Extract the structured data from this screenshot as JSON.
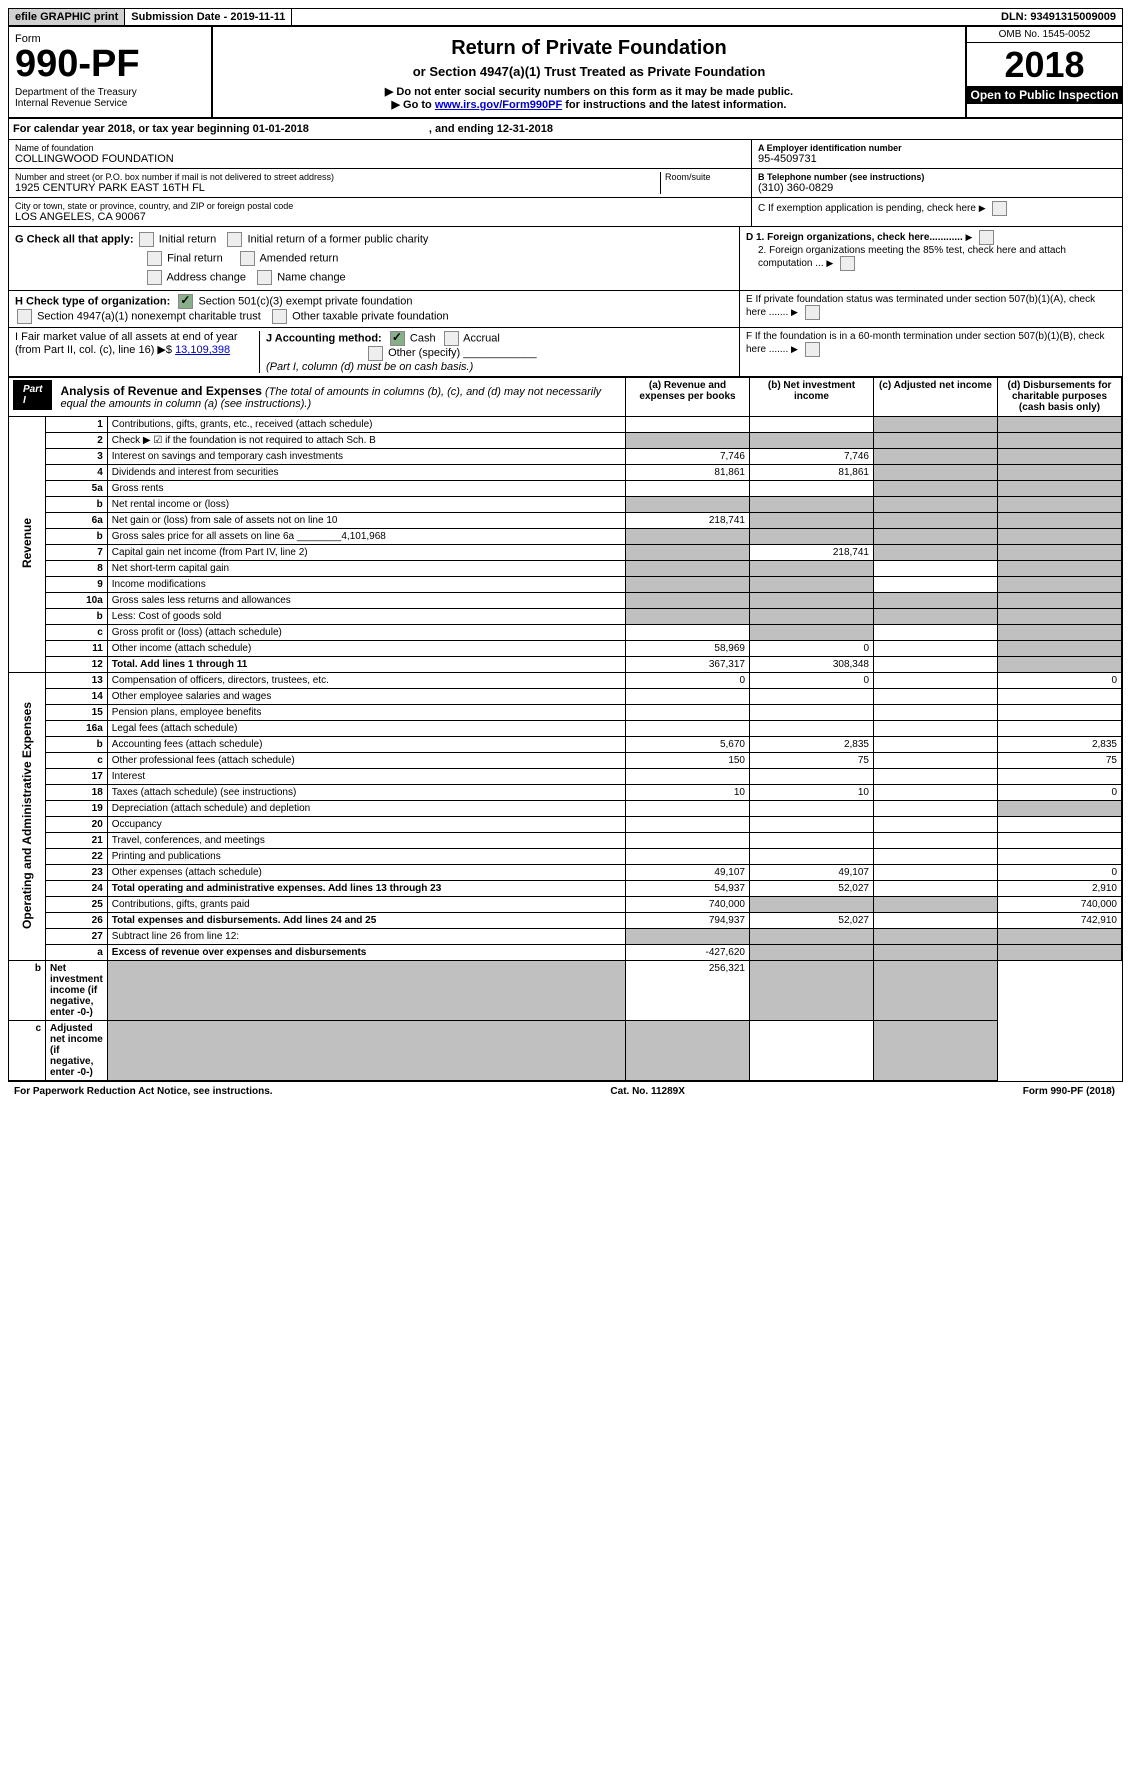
{
  "topbar": {
    "efile": "efile GRAPHIC print",
    "subdate_lbl": "Submission Date - ",
    "subdate": "2019-11-11",
    "dln_lbl": "DLN: ",
    "dln": "93491315009009"
  },
  "header": {
    "form_lbl": "Form",
    "form_num": "990-PF",
    "dept": "Department of the Treasury",
    "irs": "Internal Revenue Service",
    "title": "Return of Private Foundation",
    "subtitle": "or Section 4947(a)(1) Trust Treated as Private Foundation",
    "warn": "▶ Do not enter social security numbers on this form as it may be made public.",
    "goto": "▶ Go to ",
    "link": "www.irs.gov/Form990PF",
    "goto2": " for instructions and the latest information.",
    "omb": "OMB No. 1545-0052",
    "year": "2018",
    "inspect": "Open to Public Inspection"
  },
  "cal": {
    "text": "For calendar year 2018, or tax year beginning 01-01-2018",
    "end": ", and ending 12-31-2018"
  },
  "id": {
    "name_lbl": "Name of foundation",
    "name": "COLLINGWOOD FOUNDATION",
    "addr_lbl": "Number and street (or P.O. box number if mail is not delivered to street address)",
    "room_lbl": "Room/suite",
    "addr": "1925 CENTURY PARK EAST 16TH FL",
    "city_lbl": "City or town, state or province, country, and ZIP or foreign postal code",
    "city": "LOS ANGELES, CA  90067",
    "a_lbl": "A Employer identification number",
    "a": "95-4509731",
    "b_lbl": "B Telephone number (see instructions)",
    "b": "(310) 360-0829",
    "c_lbl": "C If exemption application is pending, check here",
    "d1": "D 1. Foreign organizations, check here............",
    "d2": "2. Foreign organizations meeting the 85% test, check here and attach computation ...",
    "e": "E If private foundation status was terminated under section 507(b)(1)(A), check here .......",
    "f": "F If the foundation is in a 60-month termination under section 507(b)(1)(B), check here ......."
  },
  "g": {
    "lbl": "G Check all that apply:",
    "i1": "Initial return",
    "i2": "Initial return of a former public charity",
    "i3": "Final return",
    "i4": "Amended return",
    "i5": "Address change",
    "i6": "Name change"
  },
  "h": {
    "lbl": "H Check type of organization:",
    "o1": "Section 501(c)(3) exempt private foundation",
    "o2": "Section 4947(a)(1) nonexempt charitable trust",
    "o3": "Other taxable private foundation"
  },
  "i": {
    "lbl": "I Fair market value of all assets at end of year (from Part II, col. (c), line 16) ▶$ ",
    "val": "13,109,398"
  },
  "j": {
    "lbl": "J Accounting method:",
    "c": "Cash",
    "a": "Accrual",
    "o": "Other (specify)",
    "note": "(Part I, column (d) must be on cash basis.)"
  },
  "part1": {
    "tag": "Part I",
    "title": "Analysis of Revenue and Expenses",
    "note": "(The total of amounts in columns (b), (c), and (d) may not necessarily equal the amounts in column (a) (see instructions).)"
  },
  "cols": {
    "a": "(a) Revenue and expenses per books",
    "b": "(b) Net investment income",
    "c": "(c) Adjusted net income",
    "d": "(d) Disbursements for charitable purposes (cash basis only)"
  },
  "side": {
    "rev": "Revenue",
    "exp": "Operating and Administrative Expenses"
  },
  "rows": [
    {
      "n": "1",
      "d": "Contributions, gifts, grants, etc., received (attach schedule)"
    },
    {
      "n": "2",
      "d": "Check ▶ ☑ if the foundation is not required to attach Sch. B"
    },
    {
      "n": "3",
      "d": "Interest on savings and temporary cash investments",
      "a": "7,746",
      "b": "7,746"
    },
    {
      "n": "4",
      "d": "Dividends and interest from securities",
      "a": "81,861",
      "b": "81,861"
    },
    {
      "n": "5a",
      "d": "Gross rents"
    },
    {
      "n": "b",
      "d": "Net rental income or (loss)"
    },
    {
      "n": "6a",
      "d": "Net gain or (loss) from sale of assets not on line 10",
      "a": "218,741"
    },
    {
      "n": "b",
      "d": "Gross sales price for all assets on line 6a ________4,101,968"
    },
    {
      "n": "7",
      "d": "Capital gain net income (from Part IV, line 2)",
      "b": "218,741"
    },
    {
      "n": "8",
      "d": "Net short-term capital gain"
    },
    {
      "n": "9",
      "d": "Income modifications"
    },
    {
      "n": "10a",
      "d": "Gross sales less returns and allowances"
    },
    {
      "n": "b",
      "d": "Less: Cost of goods sold"
    },
    {
      "n": "c",
      "d": "Gross profit or (loss) (attach schedule)"
    },
    {
      "n": "11",
      "d": "Other income (attach schedule)",
      "a": "58,969",
      "b": "0"
    },
    {
      "n": "12",
      "d": "Total. Add lines 1 through 11",
      "a": "367,317",
      "b": "308,348",
      "bold": true
    },
    {
      "n": "13",
      "d": "Compensation of officers, directors, trustees, etc.",
      "a": "0",
      "b": "0",
      "dd": "0"
    },
    {
      "n": "14",
      "d": "Other employee salaries and wages"
    },
    {
      "n": "15",
      "d": "Pension plans, employee benefits"
    },
    {
      "n": "16a",
      "d": "Legal fees (attach schedule)"
    },
    {
      "n": "b",
      "d": "Accounting fees (attach schedule)",
      "a": "5,670",
      "b": "2,835",
      "dd": "2,835"
    },
    {
      "n": "c",
      "d": "Other professional fees (attach schedule)",
      "a": "150",
      "b": "75",
      "dd": "75"
    },
    {
      "n": "17",
      "d": "Interest"
    },
    {
      "n": "18",
      "d": "Taxes (attach schedule) (see instructions)",
      "a": "10",
      "b": "10",
      "dd": "0"
    },
    {
      "n": "19",
      "d": "Depreciation (attach schedule) and depletion"
    },
    {
      "n": "20",
      "d": "Occupancy"
    },
    {
      "n": "21",
      "d": "Travel, conferences, and meetings"
    },
    {
      "n": "22",
      "d": "Printing and publications"
    },
    {
      "n": "23",
      "d": "Other expenses (attach schedule)",
      "a": "49,107",
      "b": "49,107",
      "dd": "0"
    },
    {
      "n": "24",
      "d": "Total operating and administrative expenses. Add lines 13 through 23",
      "a": "54,937",
      "b": "52,027",
      "dd": "2,910",
      "bold": true
    },
    {
      "n": "25",
      "d": "Contributions, gifts, grants paid",
      "a": "740,000",
      "dd": "740,000"
    },
    {
      "n": "26",
      "d": "Total expenses and disbursements. Add lines 24 and 25",
      "a": "794,937",
      "b": "52,027",
      "dd": "742,910",
      "bold": true
    },
    {
      "n": "27",
      "d": "Subtract line 26 from line 12:"
    },
    {
      "n": "a",
      "d": "Excess of revenue over expenses and disbursements",
      "a": "-427,620",
      "bold": true
    },
    {
      "n": "b",
      "d": "Net investment income (if negative, enter -0-)",
      "b": "256,321",
      "bold": true
    },
    {
      "n": "c",
      "d": "Adjusted net income (if negative, enter -0-)",
      "bold": true
    }
  ],
  "footer": {
    "l": "For Paperwork Reduction Act Notice, see instructions.",
    "c": "Cat. No. 11289X",
    "r": "Form 990-PF (2018)"
  }
}
